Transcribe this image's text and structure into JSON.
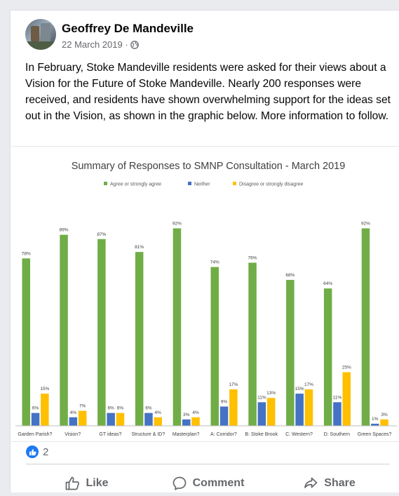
{
  "post": {
    "author": "Geoffrey De Mandeville",
    "date": "22 March 2019 ·",
    "privacy_icon": "globe-icon",
    "text": "In February, Stoke Mandeville residents were asked for their views about a Vision for the Future of Stoke Mandeville. Nearly 200 responses were received, and residents have shown overwhelming support for the ideas set out in the Vision, as shown in the graphic below. More information to follow."
  },
  "reactions": {
    "icon": "thumbs-up-icon",
    "count": "2"
  },
  "actions": {
    "like": "Like",
    "comment": "Comment",
    "share": "Share"
  },
  "colors": {
    "agree": "#70ad47",
    "neither": "#4472c4",
    "disagree": "#ffc000",
    "facebook_blue": "#2078f4"
  },
  "chart_data": {
    "type": "bar",
    "title": "Summary of Responses to SMNP Consultation - March 2019",
    "legend_position": "top",
    "categories": [
      "Garden Parish?",
      "Vision?",
      "GT ideas?",
      "Structure & ID?",
      "Masterplan?",
      "A: Corridor?",
      "B: Stoke Brook",
      "C: Western?",
      "D: Southern",
      "Green Spaces?"
    ],
    "series": [
      {
        "name": "Agree or strongly agree",
        "values": [
          78,
          89,
          87,
          81,
          92,
          74,
          76,
          68,
          64,
          92
        ]
      },
      {
        "name": "Neither",
        "values": [
          6,
          4,
          6,
          6,
          3,
          9,
          11,
          15,
          11,
          1
        ]
      },
      {
        "name": "Disagree or strongly disagree",
        "values": [
          15,
          7,
          6,
          4,
          4,
          17,
          13,
          17,
          25,
          3
        ]
      }
    ],
    "value_suffix": "%",
    "ylim": [
      0,
      100
    ],
    "grid": false
  }
}
